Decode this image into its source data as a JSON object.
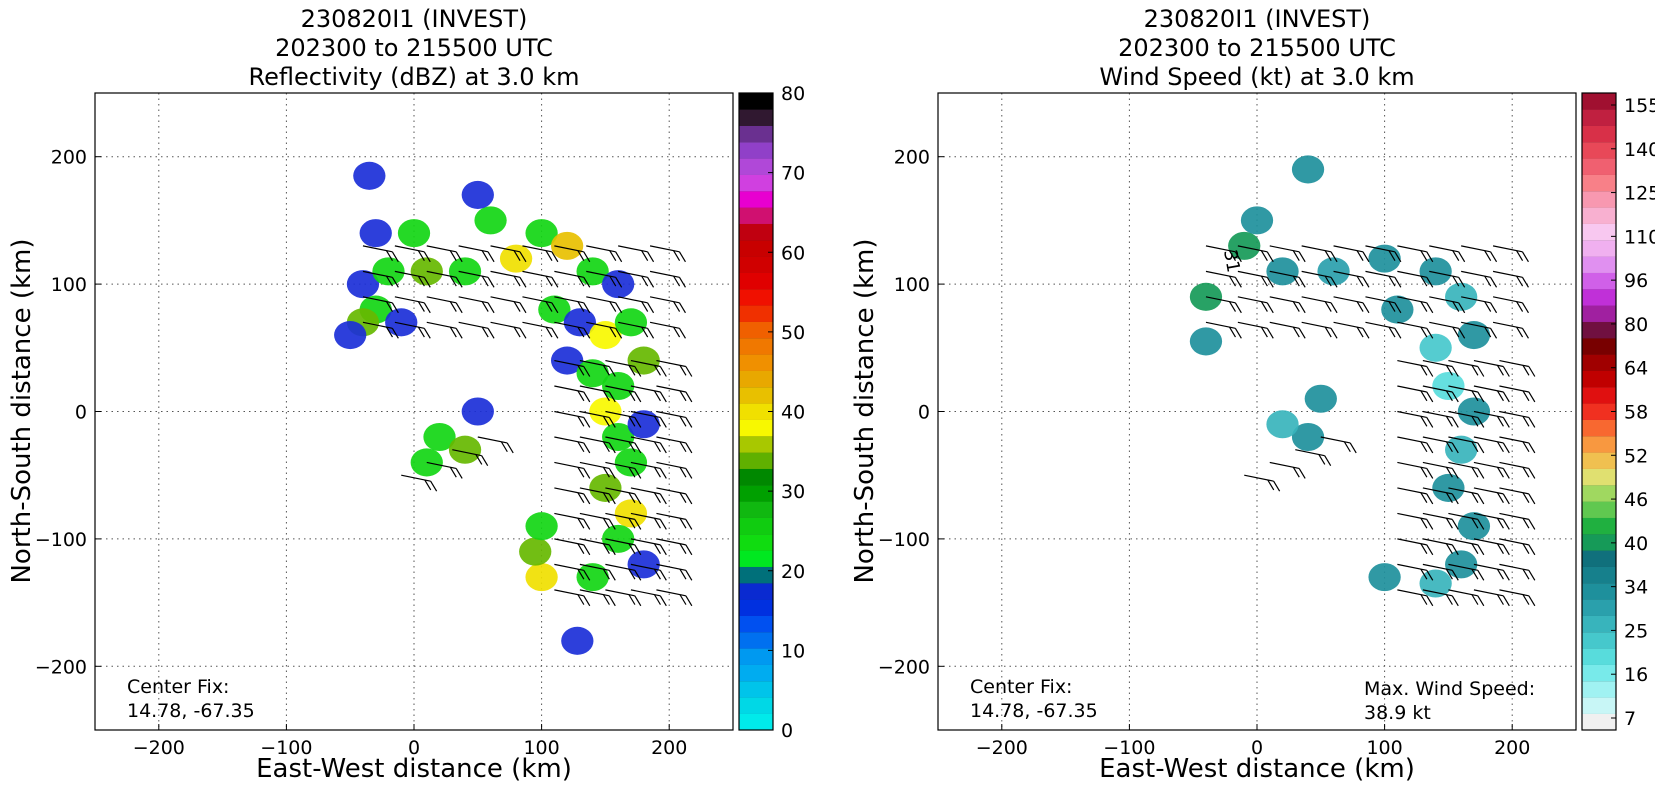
{
  "figure": {
    "panels": [
      {
        "title_lines": [
          "230820I1 (INVEST)",
          "202300 to 215500 UTC",
          "Reflectivity (dBZ) at 3.0 km"
        ],
        "center_fix_label": "Center Fix:",
        "center_fix_value": "14.78, -67.35"
      },
      {
        "title_lines": [
          "230820I1 (INVEST)",
          "202300 to 215500 UTC",
          "Wind Speed (kt) at 3.0 km"
        ],
        "center_fix_label": "Center Fix:",
        "center_fix_value": "14.78, -67.35",
        "max_wind_label": "Max. Wind Speed:",
        "max_wind_value": "38.9 kt",
        "contour_label": "31"
      }
    ]
  },
  "chart_data": [
    {
      "type": "heatmap",
      "title": "230820I1 (INVEST)\n202300 to 215500 UTC\nReflectivity (dBZ) at 3.0 km",
      "xlabel": "East-West distance (km)",
      "ylabel": "North-South distance (km)",
      "xlim": [
        -250,
        250
      ],
      "ylim": [
        -250,
        250
      ],
      "xticks": [
        -200,
        -100,
        0,
        100,
        200
      ],
      "yticks": [
        -200,
        -100,
        0,
        100,
        200
      ],
      "xtick_labels": [
        "−200",
        "−100",
        "0",
        "100",
        "200"
      ],
      "ytick_labels": [
        "−200",
        "−100",
        "0",
        "100",
        "200"
      ],
      "grid": true,
      "colorbar": {
        "min": 0,
        "max": 80,
        "ticks": [
          0,
          10,
          20,
          30,
          40,
          50,
          60,
          70,
          80
        ],
        "tick_labels": [
          "0",
          "10",
          "20",
          "30",
          "40",
          "50",
          "60",
          "70",
          "80"
        ],
        "colors": [
          "#00eaea",
          "#00d8e6",
          "#00c4ea",
          "#00acf0",
          "#0099f0",
          "#0070f0",
          "#0050f0",
          "#0030e0",
          "#0a2ad0",
          "#00707a",
          "#00e820",
          "#10dc10",
          "#10cc10",
          "#10b810",
          "#00a000",
          "#008800",
          "#60b000",
          "#a8c800",
          "#f8f800",
          "#f0e000",
          "#e8c000",
          "#e8a800",
          "#f09000",
          "#f07800",
          "#f06000",
          "#f03000",
          "#f01000",
          "#e00000",
          "#d00000",
          "#c80000",
          "#c00010",
          "#d01070",
          "#e800d0",
          "#d040e0",
          "#b048d8",
          "#9040c8",
          "#6a3090",
          "#301830",
          "#000000"
        ]
      },
      "series": [
        {
          "cells": [
            [
              -30,
              140,
              "#1b2fd8"
            ],
            [
              0,
              140,
              "#12d614"
            ],
            [
              60,
              150,
              "#12d614"
            ],
            [
              -40,
              100,
              "#1b2fd8"
            ],
            [
              -20,
              110,
              "#12d614"
            ],
            [
              10,
              110,
              "#66b800"
            ],
            [
              40,
              110,
              "#12d614"
            ],
            [
              80,
              120,
              "#f0e000"
            ],
            [
              100,
              140,
              "#12d614"
            ],
            [
              120,
              130,
              "#e8c000"
            ],
            [
              140,
              110,
              "#12d614"
            ],
            [
              160,
              100,
              "#1b2fd8"
            ],
            [
              -30,
              80,
              "#12d614"
            ],
            [
              -10,
              70,
              "#1b2fd8"
            ],
            [
              -40,
              70,
              "#66b800"
            ],
            [
              -50,
              60,
              "#1b2fd8"
            ],
            [
              110,
              80,
              "#12d614"
            ],
            [
              130,
              70,
              "#1b2fd8"
            ],
            [
              150,
              60,
              "#f8f800"
            ],
            [
              170,
              70,
              "#12d614"
            ],
            [
              120,
              40,
              "#1b2fd8"
            ],
            [
              140,
              30,
              "#12d614"
            ],
            [
              160,
              20,
              "#12d614"
            ],
            [
              180,
              40,
              "#66b800"
            ],
            [
              150,
              0,
              "#f8f800"
            ],
            [
              160,
              -20,
              "#12d614"
            ],
            [
              180,
              -10,
              "#1b2fd8"
            ],
            [
              170,
              -40,
              "#12d614"
            ],
            [
              150,
              -60,
              "#66b800"
            ],
            [
              170,
              -80,
              "#f0e000"
            ],
            [
              160,
              -100,
              "#12d614"
            ],
            [
              180,
              -120,
              "#1b2fd8"
            ],
            [
              140,
              -130,
              "#12d614"
            ],
            [
              20,
              -20,
              "#12d614"
            ],
            [
              40,
              -30,
              "#66b800"
            ],
            [
              50,
              0,
              "#1b2fd8"
            ],
            [
              10,
              -40,
              "#12d614"
            ],
            [
              100,
              -130,
              "#f0e000"
            ],
            [
              95,
              -110,
              "#66b800"
            ],
            [
              100,
              -90,
              "#12d614"
            ],
            [
              50,
              170,
              "#1b2fd8"
            ],
            [
              -35,
              185,
              "#1b2fd8"
            ],
            [
              128,
              -180,
              "#1b2fd8"
            ]
          ]
        }
      ]
    },
    {
      "type": "heatmap",
      "title": "230820I1 (INVEST)\n202300 to 215500 UTC\nWind Speed (kt) at 3.0 km",
      "xlabel": "East-West distance (km)",
      "ylabel": "North-South distance (km)",
      "xlim": [
        -250,
        250
      ],
      "ylim": [
        -250,
        250
      ],
      "xticks": [
        -200,
        -100,
        0,
        100,
        200
      ],
      "yticks": [
        -200,
        -100,
        0,
        100,
        200
      ],
      "xtick_labels": [
        "−200",
        "−100",
        "0",
        "100",
        "200"
      ],
      "ytick_labels": [
        "−200",
        "−100",
        "0",
        "100",
        "200"
      ],
      "grid": true,
      "max_wind_kt": 38.9,
      "colorbar": {
        "min": 4,
        "max": 160,
        "ticks": [
          7,
          16,
          25,
          34,
          40,
          46,
          52,
          58,
          64,
          80,
          96,
          110,
          125,
          140,
          155
        ],
        "tick_labels": [
          "7",
          "16",
          "25",
          "34",
          "40",
          "46",
          "52",
          "58",
          "64",
          "80",
          "96",
          "110",
          "125",
          "140",
          "155"
        ],
        "colors": [
          "#f0f0f0",
          "#c8f6f6",
          "#a0f2f2",
          "#78eaea",
          "#58dcdc",
          "#46c8cc",
          "#38b4bc",
          "#2aa0ac",
          "#1e909c",
          "#16808c",
          "#10707c",
          "#169a58",
          "#20b040",
          "#60c850",
          "#a0d860",
          "#e0e070",
          "#f0c050",
          "#f89840",
          "#f86830",
          "#f03020",
          "#e01010",
          "#c00000",
          "#a00000",
          "#780000",
          "#701040",
          "#a020a0",
          "#c030d8",
          "#d060e8",
          "#e090f0",
          "#f0b0f0",
          "#f8c8f0",
          "#f8b0d0",
          "#f898b0",
          "#f88088",
          "#f06070",
          "#e84858",
          "#d83048",
          "#c02040",
          "#a01030"
        ]
      },
      "series": [
        {
          "cells": [
            [
              -10,
              130,
              "#169a58"
            ],
            [
              0,
              150,
              "#1e909c"
            ],
            [
              -40,
              90,
              "#169a58"
            ],
            [
              20,
              110,
              "#1e909c"
            ],
            [
              60,
              110,
              "#2aa0ac"
            ],
            [
              100,
              120,
              "#1e909c"
            ],
            [
              140,
              110,
              "#1e909c"
            ],
            [
              160,
              90,
              "#38b4bc"
            ],
            [
              110,
              80,
              "#1e909c"
            ],
            [
              140,
              50,
              "#46c8cc"
            ],
            [
              170,
              60,
              "#1e909c"
            ],
            [
              150,
              20,
              "#58dcdc"
            ],
            [
              170,
              0,
              "#1e909c"
            ],
            [
              160,
              -30,
              "#38b4bc"
            ],
            [
              150,
              -60,
              "#1e909c"
            ],
            [
              170,
              -90,
              "#1e909c"
            ],
            [
              160,
              -120,
              "#1e909c"
            ],
            [
              140,
              -135,
              "#38b4bc"
            ],
            [
              40,
              -20,
              "#1e909c"
            ],
            [
              20,
              -10,
              "#38b4bc"
            ],
            [
              50,
              10,
              "#1e909c"
            ],
            [
              100,
              -130,
              "#1e909c"
            ],
            [
              -40,
              55,
              "#1e909c"
            ],
            [
              40,
              190,
              "#1e909c"
            ]
          ]
        }
      ]
    }
  ]
}
